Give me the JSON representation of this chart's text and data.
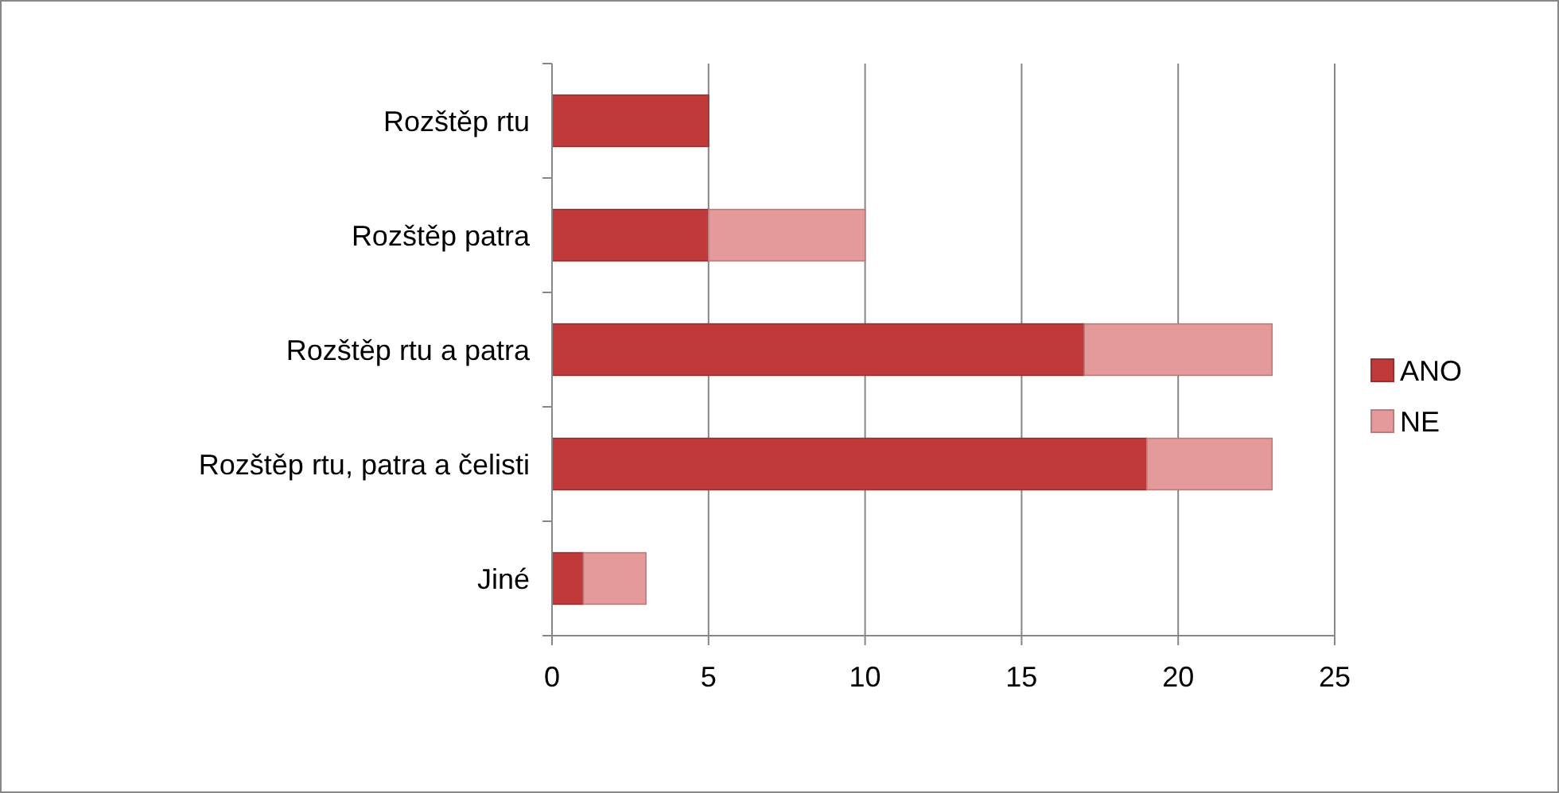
{
  "chart_data": {
    "type": "bar",
    "orientation": "horizontal",
    "stacked": true,
    "categories": [
      "Rozštěp rtu",
      "Rozštěp patra",
      "Rozštěp rtu a patra",
      "Rozštěp rtu, patra a čelisti",
      "Jiné"
    ],
    "series": [
      {
        "name": "ANO",
        "color": "#c0393b",
        "values": [
          5,
          5,
          17,
          19,
          1
        ]
      },
      {
        "name": "NE",
        "color": "#e49a9a",
        "values": [
          0,
          5,
          6,
          4,
          2
        ]
      }
    ],
    "xlim": [
      0,
      25
    ],
    "xticks": [
      0,
      5,
      10,
      15,
      20,
      25
    ],
    "grid": "x",
    "legend": "right"
  }
}
